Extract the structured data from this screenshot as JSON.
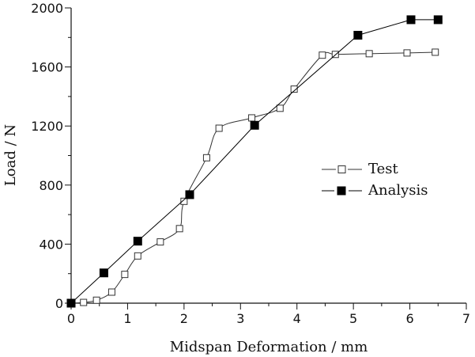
{
  "chart_data": {
    "type": "line",
    "xlabel": "Midspan Deformation / mm",
    "ylabel": "Load / N",
    "xlim": [
      0,
      7
    ],
    "ylim": [
      0,
      2000
    ],
    "xticks": [
      0,
      1,
      2,
      3,
      4,
      5,
      6,
      7
    ],
    "yticks": [
      0,
      400,
      800,
      1200,
      1600,
      2000
    ],
    "grid": false,
    "legend_position": "right-middle",
    "series": [
      {
        "name": "Test",
        "marker": "open-square",
        "color": "#333333",
        "x": [
          0.0,
          0.22,
          0.45,
          0.72,
          0.95,
          1.18,
          1.58,
          1.92,
          2.0,
          2.4,
          2.62,
          3.2,
          3.7,
          3.95,
          4.45,
          4.68,
          5.28,
          5.95,
          6.45
        ],
        "y": [
          0,
          5,
          20,
          75,
          195,
          320,
          415,
          505,
          690,
          985,
          1185,
          1255,
          1320,
          1450,
          1680,
          1685,
          1690,
          1695,
          1700
        ]
      },
      {
        "name": "Analysis",
        "marker": "filled-square",
        "color": "#000000",
        "x": [
          0.0,
          0.58,
          1.18,
          2.1,
          3.25,
          5.08,
          6.02,
          6.5
        ],
        "y": [
          0,
          205,
          420,
          735,
          1205,
          1815,
          1920,
          1920
        ]
      }
    ]
  }
}
